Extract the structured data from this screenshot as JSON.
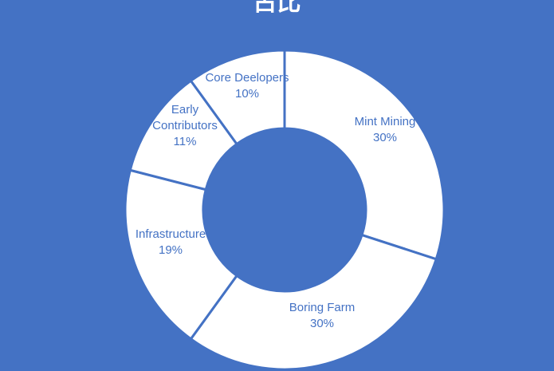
{
  "chart_data": {
    "type": "donut",
    "title": "占比",
    "slices": [
      {
        "label": "Mint Mining",
        "lines": [
          "Mint Mining"
        ],
        "value": 30,
        "pct_label": "30%"
      },
      {
        "label": "Boring Farm",
        "lines": [
          "Boring Farm"
        ],
        "value": 30,
        "pct_label": "30%"
      },
      {
        "label": "Infrastructure",
        "lines": [
          "Infrastructure"
        ],
        "value": 19,
        "pct_label": "19%"
      },
      {
        "label": "Early Contributors",
        "lines": [
          "Early",
          "Contributors"
        ],
        "value": 11,
        "pct_label": "11%"
      },
      {
        "label": "Core Deelopers",
        "lines": [
          "Core Deelopers"
        ],
        "value": 10,
        "pct_label": "10%"
      }
    ],
    "start_angle_deg": 0,
    "direction": "clockwise",
    "legend": "none"
  },
  "colors": {
    "background": "#4472c4",
    "slice_fill": "#ffffff",
    "slice_border": "#4472c4",
    "label_text": "#4472c4",
    "title_text": "#ffffff"
  }
}
